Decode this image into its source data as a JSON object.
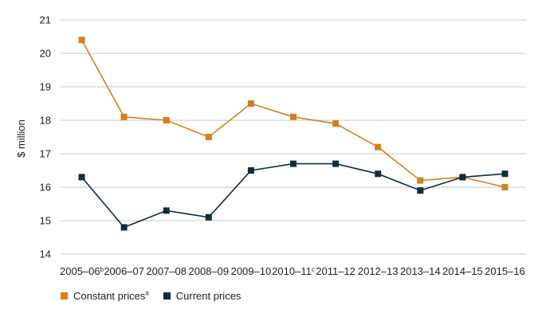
{
  "chart_data": {
    "type": "line",
    "title": "",
    "xlabel": "",
    "ylabel": "$ million",
    "ylim": [
      14,
      21
    ],
    "yticks": [
      14,
      15,
      16,
      17,
      18,
      19,
      20,
      21
    ],
    "grid": true,
    "legend_position": "bottom-left",
    "categories": [
      {
        "label": "2005–06",
        "sup": "b"
      },
      {
        "label": "2006–07",
        "sup": ""
      },
      {
        "label": "2007–08",
        "sup": ""
      },
      {
        "label": "2008–09",
        "sup": ""
      },
      {
        "label": "2009–10",
        "sup": ""
      },
      {
        "label": "2010–11",
        "sup": "c"
      },
      {
        "label": "2011–12",
        "sup": ""
      },
      {
        "label": "2012–13",
        "sup": ""
      },
      {
        "label": "2013–14",
        "sup": ""
      },
      {
        "label": "2014–15",
        "sup": ""
      },
      {
        "label": "2015–16",
        "sup": ""
      }
    ],
    "series": [
      {
        "name": "Constant prices",
        "sup": "a",
        "color": "#d5801a",
        "values": [
          20.4,
          18.1,
          18.0,
          17.5,
          18.5,
          18.1,
          17.9,
          17.2,
          16.2,
          16.3,
          16.0
        ]
      },
      {
        "name": "Current prices",
        "sup": "",
        "color": "#0f2d3c",
        "values": [
          16.3,
          14.8,
          15.3,
          15.1,
          16.5,
          16.7,
          16.7,
          16.4,
          15.9,
          16.3,
          16.4
        ]
      }
    ],
    "colors": {
      "grid": "#c8c8c8",
      "text": "#222222"
    }
  }
}
